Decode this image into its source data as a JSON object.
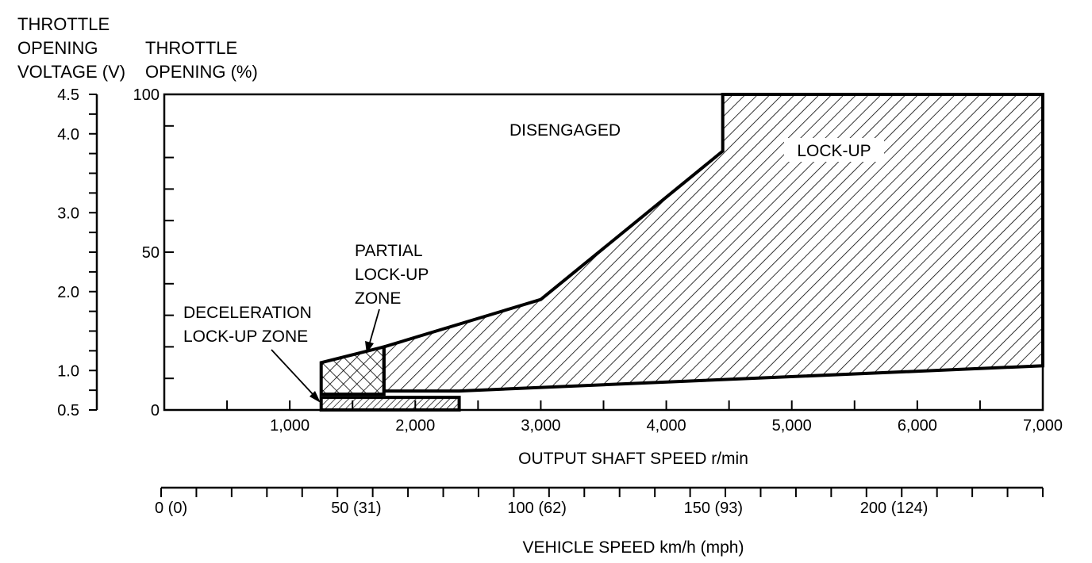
{
  "chart_data": {
    "type": "area",
    "voltage_axis": {
      "label_lines": [
        "THROTTLE",
        "OPENING",
        "VOLTAGE (V)"
      ],
      "ticks": [
        0.5,
        1.0,
        2.0,
        3.0,
        4.0,
        4.5
      ],
      "tick_labels": [
        "0.5",
        "1.0",
        "2.0",
        "3.0",
        "4.0",
        "4.5"
      ],
      "range": [
        0.5,
        4.5
      ]
    },
    "throttle_axis": {
      "label_lines": [
        "THROTTLE",
        "OPENING (%)"
      ],
      "ticks": [
        0,
        50,
        100
      ],
      "tick_labels": [
        "0",
        "50",
        "100"
      ],
      "range": [
        0,
        100
      ]
    },
    "output_axis": {
      "label": "OUTPUT SHAFT SPEED r/min",
      "ticks": [
        1000,
        2000,
        3000,
        4000,
        5000,
        6000,
        7000
      ],
      "tick_labels": [
        "1,000",
        "2,000",
        "3,000",
        "4,000",
        "5,000",
        "6,000",
        "7,000"
      ],
      "range": [
        0,
        7000
      ]
    },
    "vehicle_axis": {
      "label": "VEHICLE SPEED km/h (mph)",
      "ticks": [
        0,
        50,
        100,
        150,
        200
      ],
      "tick_labels": [
        "0 (0)",
        "50 (31)",
        "100 (62)",
        "150 (93)",
        "200 (124)"
      ],
      "range": [
        0,
        250
      ]
    },
    "zones": [
      {
        "label": "DISENGAGED",
        "hatch": "none"
      },
      {
        "label": "LOCK-UP",
        "hatch": "diagonal",
        "upper_boundary": [
          [
            1750,
            20
          ],
          [
            3000,
            35
          ],
          [
            4450,
            82
          ],
          [
            4450,
            100
          ],
          [
            7000,
            100
          ]
        ],
        "lower_boundary": [
          [
            1750,
            6
          ],
          [
            2350,
            6
          ],
          [
            7000,
            14
          ]
        ]
      },
      {
        "label_lines": [
          "PARTIAL",
          "LOCK-UP",
          "ZONE"
        ],
        "hatch": "cross",
        "upper_boundary": [
          [
            1250,
            15
          ],
          [
            1750,
            20
          ]
        ],
        "lower_boundary": [
          [
            1250,
            5
          ],
          [
            1750,
            5
          ]
        ]
      },
      {
        "label_lines": [
          "DECELERATION",
          "LOCK-UP ZONE"
        ],
        "hatch": "dense-diagonal",
        "upper_boundary": [
          [
            1250,
            4
          ],
          [
            2350,
            4
          ]
        ],
        "lower_boundary": [
          [
            1250,
            0
          ],
          [
            2350,
            0
          ]
        ]
      }
    ],
    "grid": false
  }
}
